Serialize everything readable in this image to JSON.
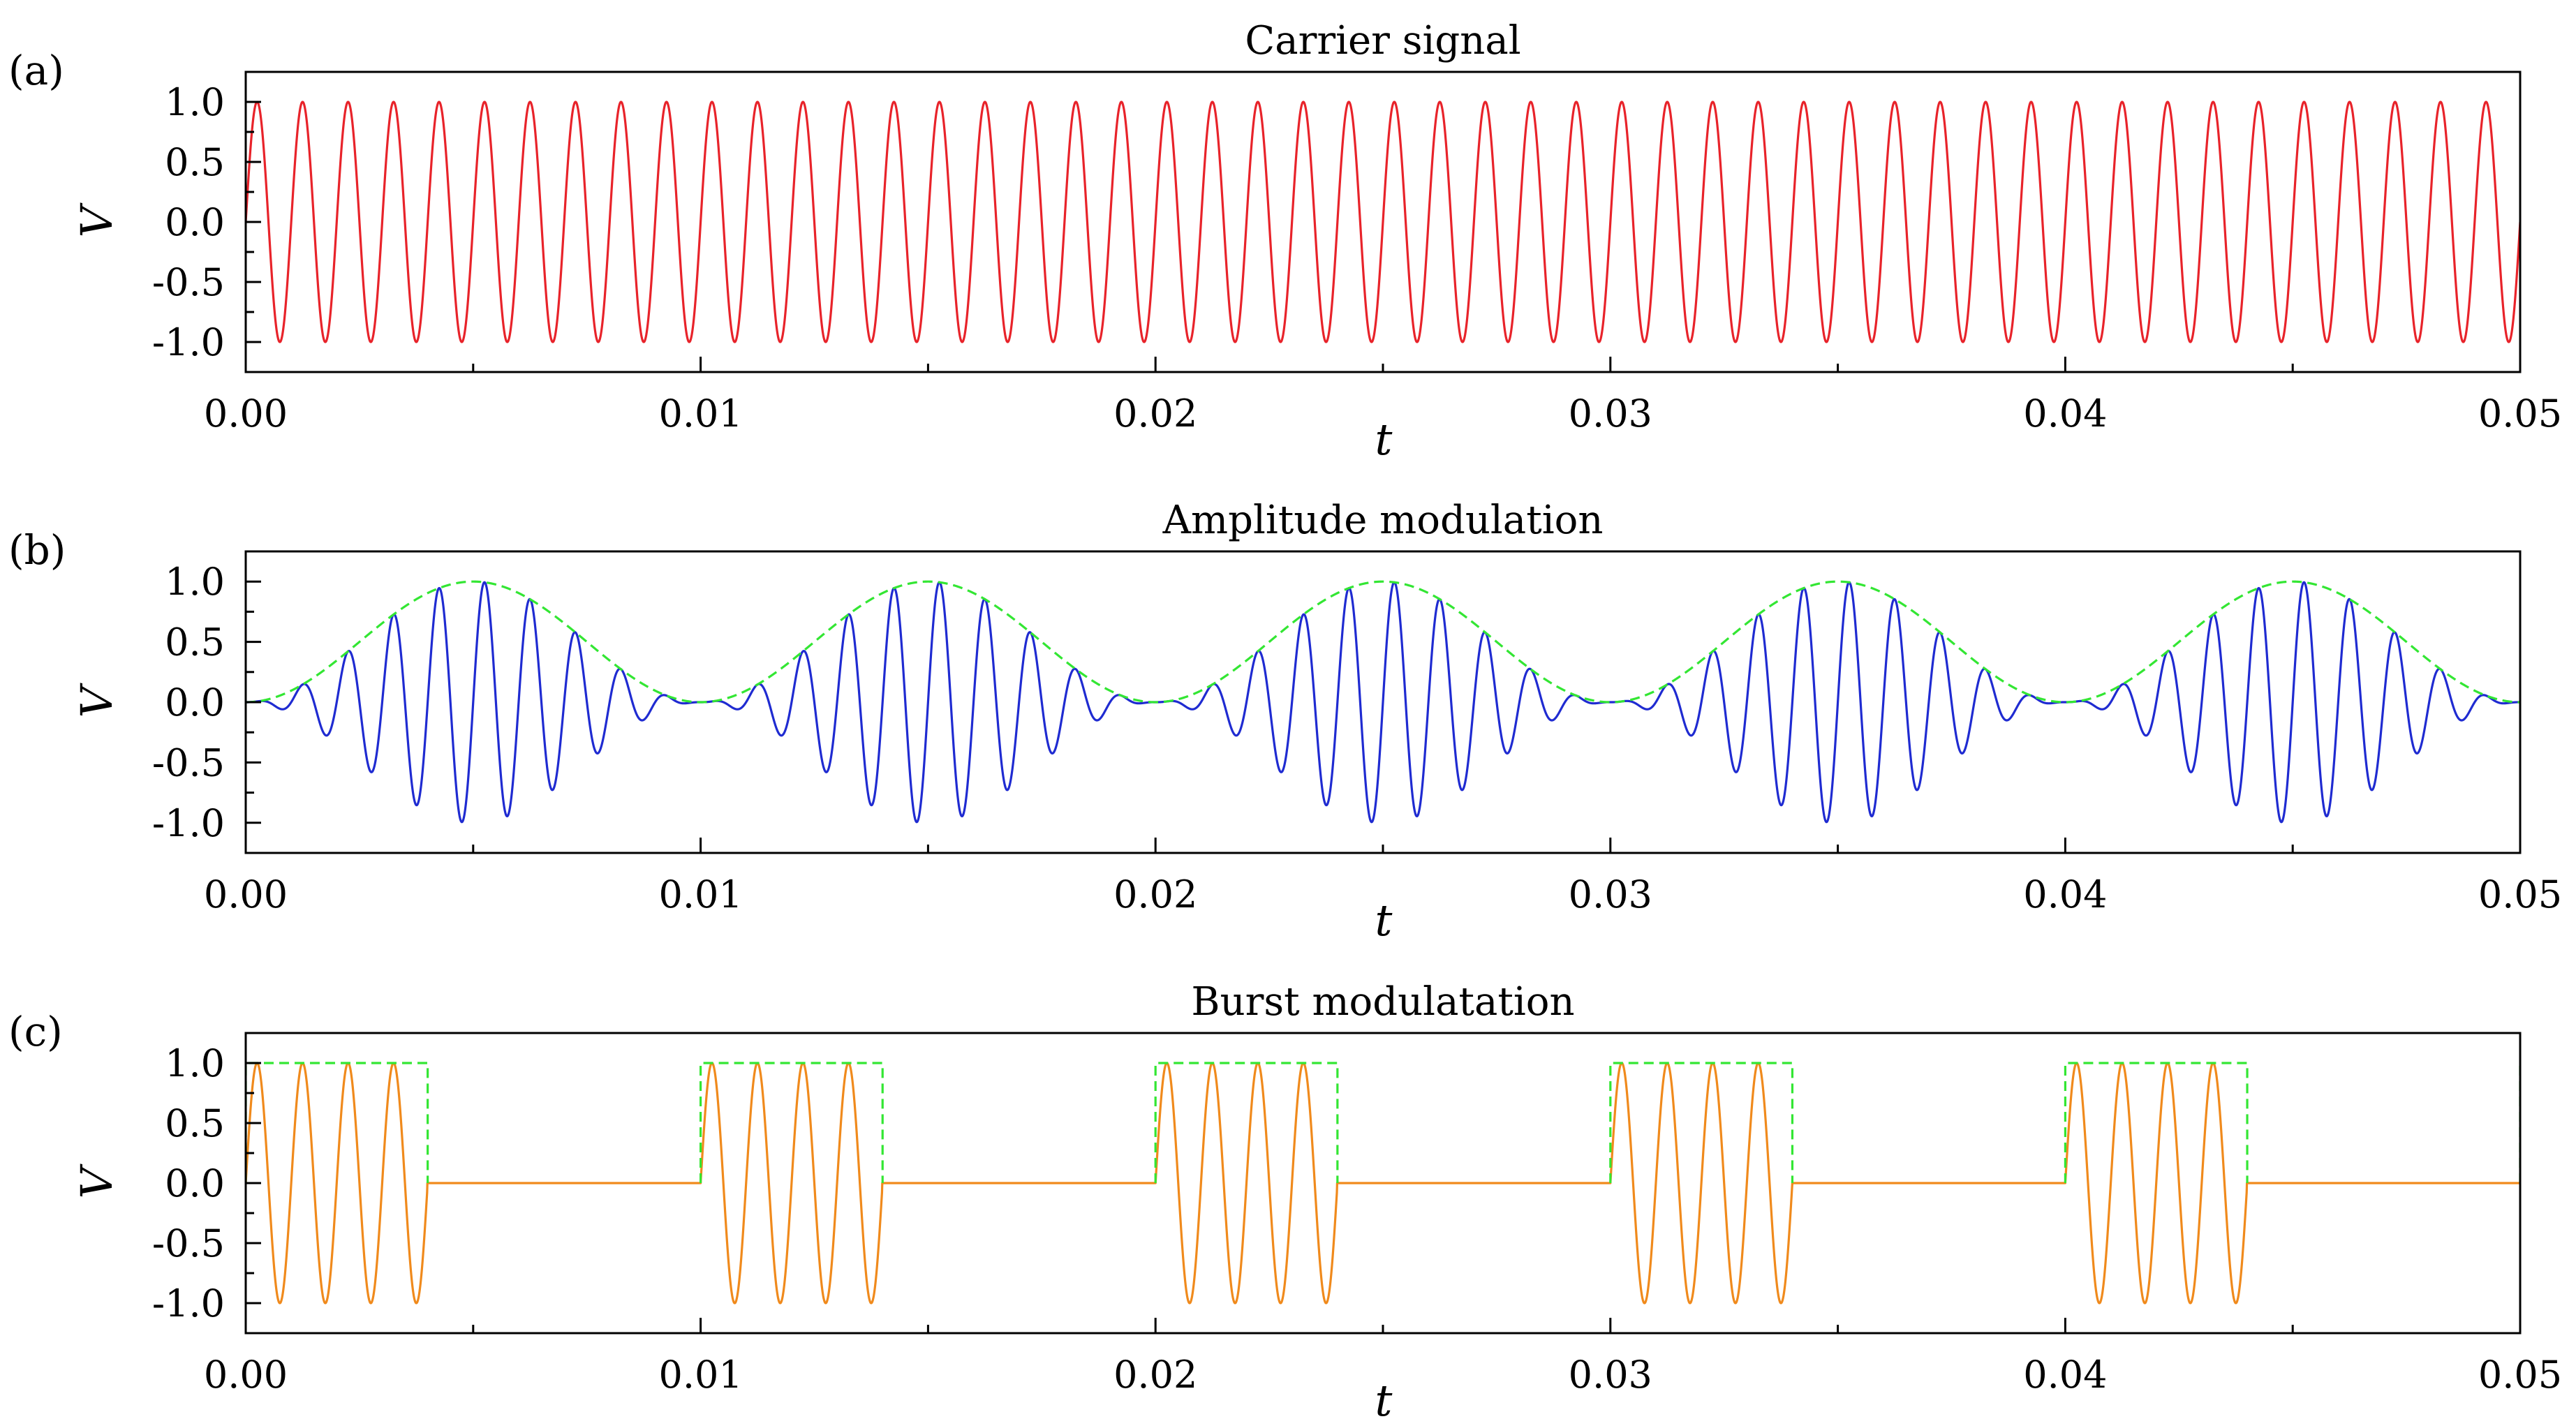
{
  "chart_data": [
    {
      "type": "line",
      "panel_label": "(a)",
      "title": "Carrier signal",
      "xlabel": "t",
      "ylabel": "V",
      "xlim": [
        0.0,
        0.05
      ],
      "ylim": [
        -1.25,
        1.25
      ],
      "xticks": [
        "0.00",
        "0.01",
        "0.02",
        "0.03",
        "0.04",
        "0.05"
      ],
      "yticks": [
        "-1.0",
        "-0.5",
        "0.0",
        "0.5",
        "1.0"
      ],
      "grid": false,
      "series": [
        {
          "kind": "sine",
          "frequency_hz": 1000,
          "amplitude": 1.0,
          "color": "#e8232a",
          "dash": false
        }
      ]
    },
    {
      "type": "line",
      "panel_label": "(b)",
      "title": "Amplitude modulation",
      "xlabel": "t",
      "ylabel": "V",
      "xlim": [
        0.0,
        0.05
      ],
      "ylim": [
        -1.25,
        1.25
      ],
      "xticks": [
        "0.00",
        "0.01",
        "0.02",
        "0.03",
        "0.04",
        "0.05"
      ],
      "yticks": [
        "-1.0",
        "-0.5",
        "0.0",
        "0.5",
        "1.0"
      ],
      "grid": false,
      "series": [
        {
          "kind": "am_signal",
          "carrier_frequency_hz": 1000,
          "envelope_frequency_hz": 100,
          "amplitude": 1.0,
          "color": "#1f2bd1",
          "dash": false
        },
        {
          "kind": "am_envelope",
          "envelope_frequency_hz": 100,
          "amplitude": 1.0,
          "color": "#33e633",
          "dash": true
        }
      ]
    },
    {
      "type": "line",
      "panel_label": "(c)",
      "title": "Burst modulatation",
      "xlabel": "t",
      "ylabel": "V",
      "xlim": [
        0.0,
        0.05
      ],
      "ylim": [
        -1.25,
        1.25
      ],
      "xticks": [
        "0.00",
        "0.01",
        "0.02",
        "0.03",
        "0.04",
        "0.05"
      ],
      "yticks": [
        "-1.0",
        "-0.5",
        "0.0",
        "0.5",
        "1.0"
      ],
      "grid": false,
      "series": [
        {
          "kind": "burst_signal",
          "carrier_frequency_hz": 1000,
          "burst_period": 0.01,
          "burst_on_time": 0.004,
          "amplitude": 1.0,
          "color": "#f08a1c",
          "dash": false
        },
        {
          "kind": "burst_gate",
          "burst_period": 0.01,
          "burst_on_time": 0.004,
          "amplitude": 1.0,
          "color": "#33e633",
          "dash": true
        }
      ]
    }
  ]
}
